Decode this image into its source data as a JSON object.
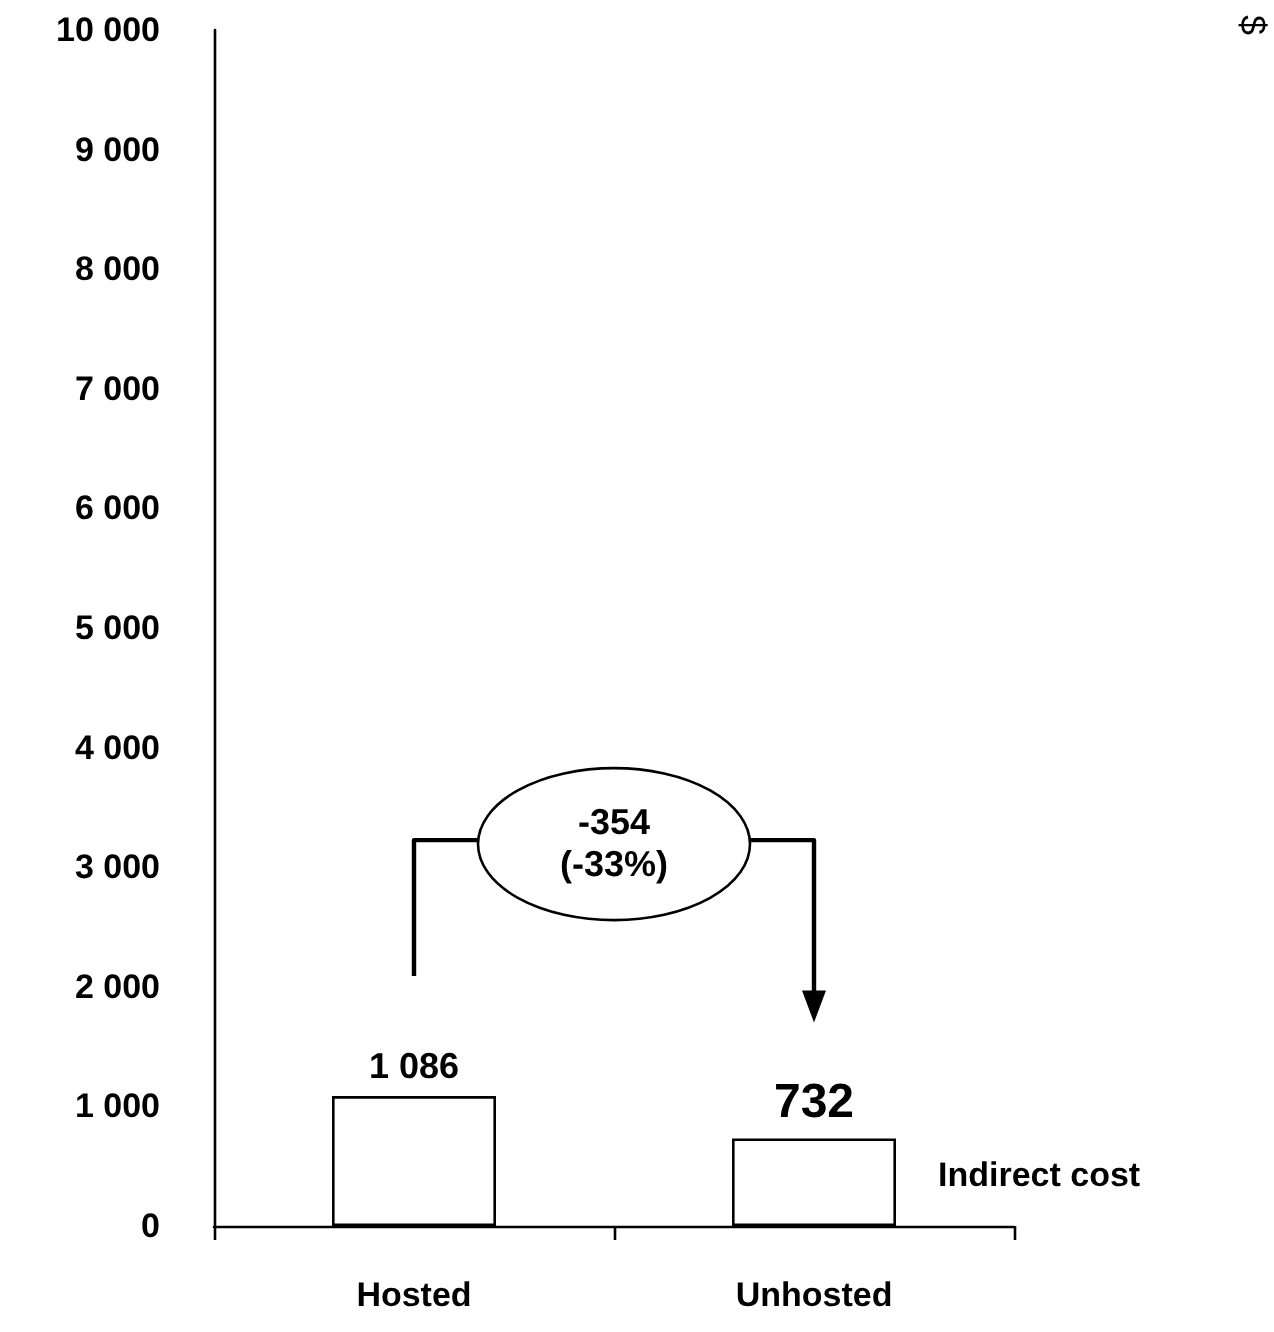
{
  "chart_data": {
    "type": "bar",
    "categories": [
      "Hosted",
      "Unhosted"
    ],
    "series": [
      {
        "name": "Indirect cost",
        "color": "#ffffff",
        "values": [
          1086,
          732
        ],
        "value_labels": [
          "1 086",
          "732"
        ]
      }
    ],
    "ylim": [
      0,
      10000
    ],
    "yticks": [
      0,
      {
        "value": 1000,
        "label": "1 000"
      },
      {
        "value": 2000,
        "label": "2 000"
      },
      {
        "value": 3000,
        "label": "3 000"
      },
      {
        "value": 4000,
        "label": "4 000"
      },
      {
        "value": 5000,
        "label": "5 000"
      },
      {
        "value": 6000,
        "label": "6 000"
      },
      {
        "value": 7000,
        "label": "7 000"
      },
      {
        "value": 8000,
        "label": "8 000"
      },
      {
        "value": 9000,
        "label": "9 000"
      },
      {
        "value": 10000,
        "label": "10 000"
      }
    ],
    "grid": false,
    "annotations": [
      "$",
      "-354\n(-33%)"
    ]
  }
}
